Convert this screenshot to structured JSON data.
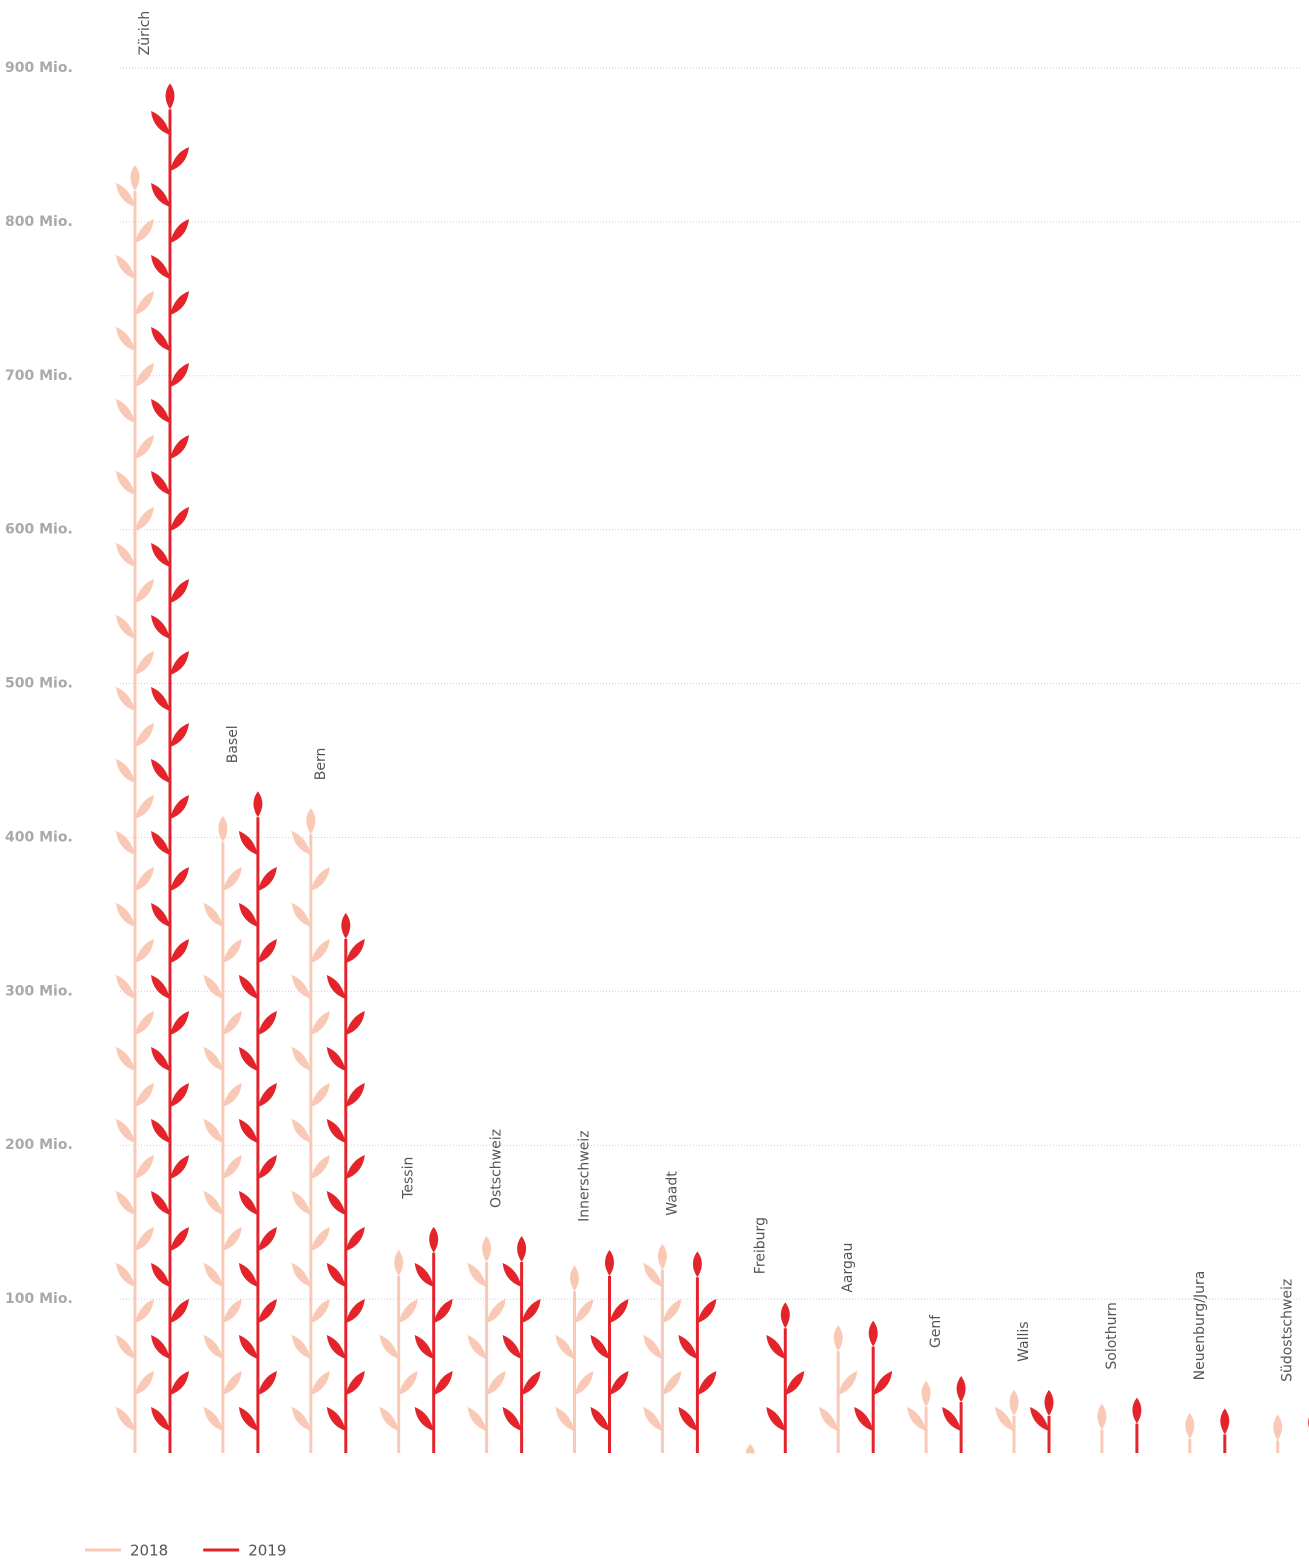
{
  "chart_data": {
    "type": "bar",
    "categories": [
      "Zürich",
      "Basel",
      "Bern",
      "Tessin",
      "Ostschweiz",
      "Innerschweiz",
      "Waadt",
      "Freiburg",
      "Aargau",
      "Genf",
      "Wallis",
      "Solothurn",
      "Neuenburg/Jura",
      "Südostschweiz"
    ],
    "series": [
      {
        "name": "2018",
        "color": "#f9c9b6",
        "values": [
          837,
          414,
          419,
          132,
          141,
          122,
          136,
          6,
          83,
          47,
          41,
          32,
          26,
          25
        ]
      },
      {
        "name": "2019",
        "color": "#e3242b",
        "values": [
          890,
          430,
          351,
          147,
          141,
          132,
          131,
          98,
          86,
          50,
          41,
          36,
          29,
          28
        ]
      }
    ],
    "ylim": [
      0,
      900
    ],
    "yticks": [
      {
        "value": 100,
        "label": "100 Mio."
      },
      {
        "value": 200,
        "label": "200 Mio."
      },
      {
        "value": 300,
        "label": "300 Mio."
      },
      {
        "value": 400,
        "label": "400 Mio."
      },
      {
        "value": 500,
        "label": "500 Mio."
      },
      {
        "value": 600,
        "label": "600 Mio."
      },
      {
        "value": 700,
        "label": "700 Mio."
      },
      {
        "value": 800,
        "label": "800 Mio."
      },
      {
        "value": 900,
        "label": "900 Mio."
      }
    ],
    "grid": true,
    "legend": "bottom-left"
  }
}
